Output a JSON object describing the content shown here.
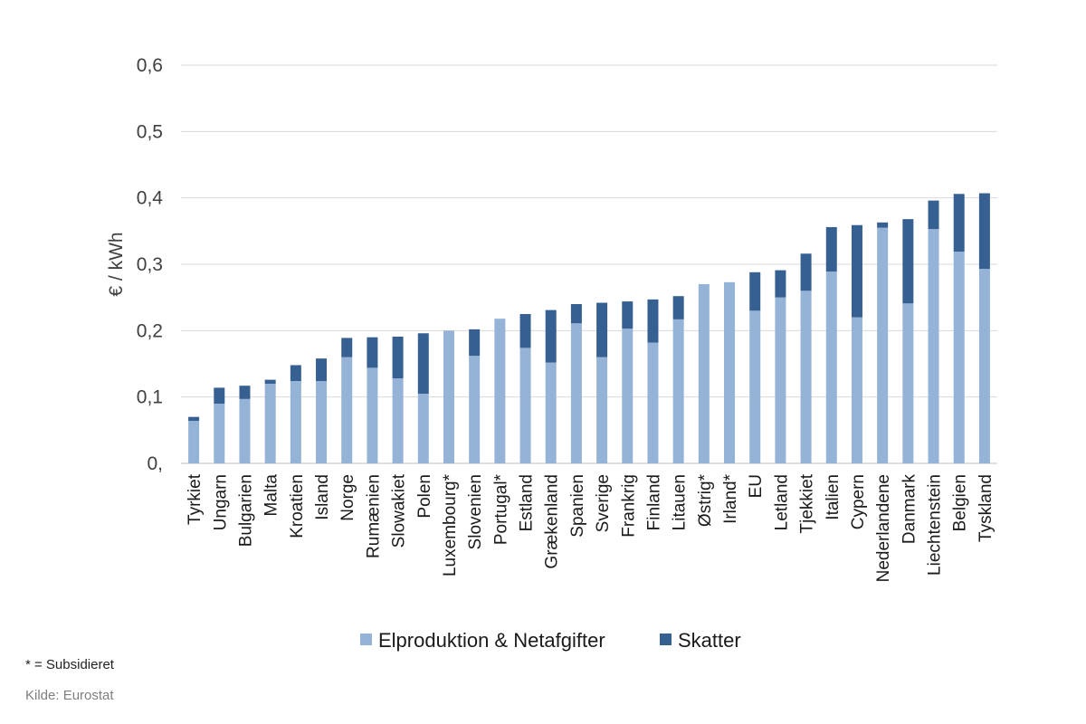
{
  "chart_data": {
    "type": "bar",
    "stacked": true,
    "ylabel": "€ / kWh",
    "ylim": [
      0,
      0.6
    ],
    "yticks": [
      "0,",
      "0,1",
      "0,2",
      "0,3",
      "0,4",
      "0,5",
      "0,6"
    ],
    "ytick_values": [
      0,
      0.1,
      0.2,
      0.3,
      0.4,
      0.5,
      0.6
    ],
    "grid": true,
    "legend_position": "bottom",
    "categories": [
      "Tyrkiet",
      "Ungarn",
      "Bulgarien",
      "Malta",
      "Kroatien",
      "Island",
      "Norge",
      "Rumænien",
      "Slowakiet",
      "Polen",
      "Luxembourg*",
      "Slovenien",
      "Portugal*",
      "Estland",
      "Grækenland",
      "Spanien",
      "Sverige",
      "Frankrig",
      "Finland",
      "Litauen",
      "Østrig*",
      "Irland*",
      "EU",
      "Letland",
      "Tjekkiet",
      "Italien",
      "Cypern",
      "Nederlandene",
      "Danmark",
      "Liechtenstein",
      "Belgien",
      "Tyskland"
    ],
    "series": [
      {
        "name": "Elproduktion &  Netafgifter",
        "color": "#95b3d7",
        "values": [
          0.064,
          0.09,
          0.097,
          0.12,
          0.124,
          0.124,
          0.16,
          0.144,
          0.128,
          0.105,
          0.2,
          0.162,
          0.218,
          0.174,
          0.152,
          0.211,
          0.16,
          0.203,
          0.182,
          0.217,
          0.27,
          0.273,
          0.23,
          0.25,
          0.26,
          0.289,
          0.22,
          0.355,
          0.241,
          0.353,
          0.319,
          0.293
        ]
      },
      {
        "name": "Skatter",
        "color": "#376092",
        "values": [
          0.006,
          0.024,
          0.02,
          0.006,
          0.024,
          0.034,
          0.029,
          0.046,
          0.063,
          0.091,
          0.0,
          0.04,
          0.0,
          0.051,
          0.079,
          0.029,
          0.082,
          0.041,
          0.065,
          0.035,
          0.0,
          0.0,
          0.058,
          0.041,
          0.056,
          0.067,
          0.139,
          0.008,
          0.127,
          0.043,
          0.087,
          0.114
        ]
      }
    ]
  },
  "footnotes": {
    "subsidy_note": "* = Subsidieret",
    "source": "Kilde: Eurostat"
  }
}
